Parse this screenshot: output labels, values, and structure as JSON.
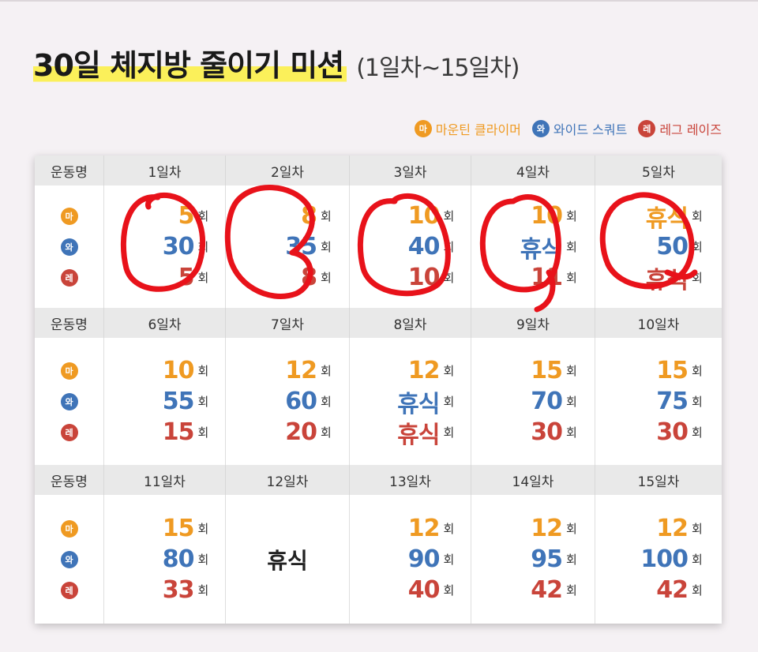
{
  "title": {
    "main": "30일 체지방 줄이기 미션",
    "sub": "(1일차~15일차)"
  },
  "legend": [
    {
      "badge": "마",
      "label": "마운틴 클라이머",
      "color": "#ef9a22"
    },
    {
      "badge": "와",
      "label": "와이드 스쿼트",
      "color": "#3f74b8"
    },
    {
      "badge": "레",
      "label": "레그 레이즈",
      "color": "#c9443a"
    }
  ],
  "table": {
    "exercise_header": "운동명",
    "unit": "회",
    "rest": "휴식",
    "badges": [
      "마",
      "와",
      "레"
    ],
    "blocks": [
      {
        "days": [
          {
            "label": "1일차",
            "values": [
              "5",
              "30",
              "5"
            ]
          },
          {
            "label": "2일차",
            "values": [
              "8",
              "35",
              "8"
            ]
          },
          {
            "label": "3일차",
            "values": [
              "10",
              "40",
              "10"
            ]
          },
          {
            "label": "4일차",
            "values": [
              "10",
              "휴식",
              "11"
            ]
          },
          {
            "label": "5일차",
            "values": [
              "휴식",
              "50",
              "휴식"
            ]
          }
        ]
      },
      {
        "days": [
          {
            "label": "6일차",
            "values": [
              "10",
              "55",
              "15"
            ]
          },
          {
            "label": "7일차",
            "values": [
              "12",
              "60",
              "20"
            ]
          },
          {
            "label": "8일차",
            "values": [
              "12",
              "휴식",
              "휴식"
            ]
          },
          {
            "label": "9일차",
            "values": [
              "15",
              "70",
              "30"
            ]
          },
          {
            "label": "10일차",
            "values": [
              "15",
              "75",
              "30"
            ]
          }
        ]
      },
      {
        "days": [
          {
            "label": "11일차",
            "values": [
              "15",
              "80",
              "33"
            ]
          },
          {
            "label": "12일차",
            "values": [
              "휴식"
            ]
          },
          {
            "label": "13일차",
            "values": [
              "12",
              "90",
              "40"
            ]
          },
          {
            "label": "14일차",
            "values": [
              "12",
              "95",
              "42"
            ]
          },
          {
            "label": "15일차",
            "values": [
              "12",
              "100",
              "42"
            ]
          }
        ]
      }
    ]
  },
  "annotation_color": "#e8121a"
}
